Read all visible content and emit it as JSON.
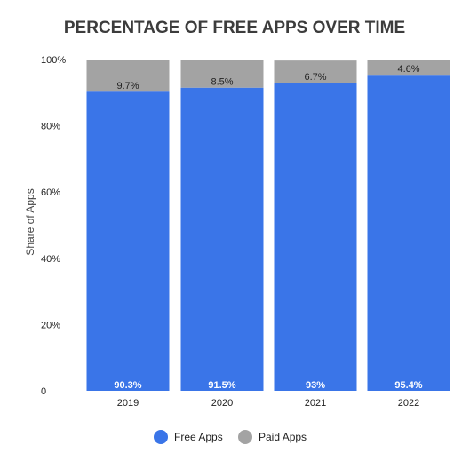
{
  "chart_data": {
    "type": "bar",
    "stacked": true,
    "title": "PERCENTAGE OF FREE APPS OVER TIME",
    "xlabel": "",
    "ylabel": "Share of Apps",
    "categories": [
      "2019",
      "2020",
      "2021",
      "2022"
    ],
    "ylim": [
      0,
      100
    ],
    "yticks": [
      {
        "value": 0,
        "label": "0"
      },
      {
        "value": 20,
        "label": "20%"
      },
      {
        "value": 40,
        "label": "40%"
      },
      {
        "value": 60,
        "label": "60%"
      },
      {
        "value": 80,
        "label": "80%"
      },
      {
        "value": 100,
        "label": "100%"
      }
    ],
    "grid": false,
    "legend_position": "bottom",
    "series": [
      {
        "name": "Free Apps",
        "color": "#3a75e8",
        "values": [
          90.3,
          91.5,
          93,
          95.4
        ],
        "labels": [
          "90.3%",
          "91.5%",
          "93%",
          "95.4%"
        ]
      },
      {
        "name": "Paid Apps",
        "color": "#a3a3a3",
        "values": [
          9.7,
          8.5,
          6.7,
          4.6
        ],
        "labels": [
          "9.7%",
          "8.5%",
          "6.7%",
          "4.6%"
        ]
      }
    ]
  }
}
